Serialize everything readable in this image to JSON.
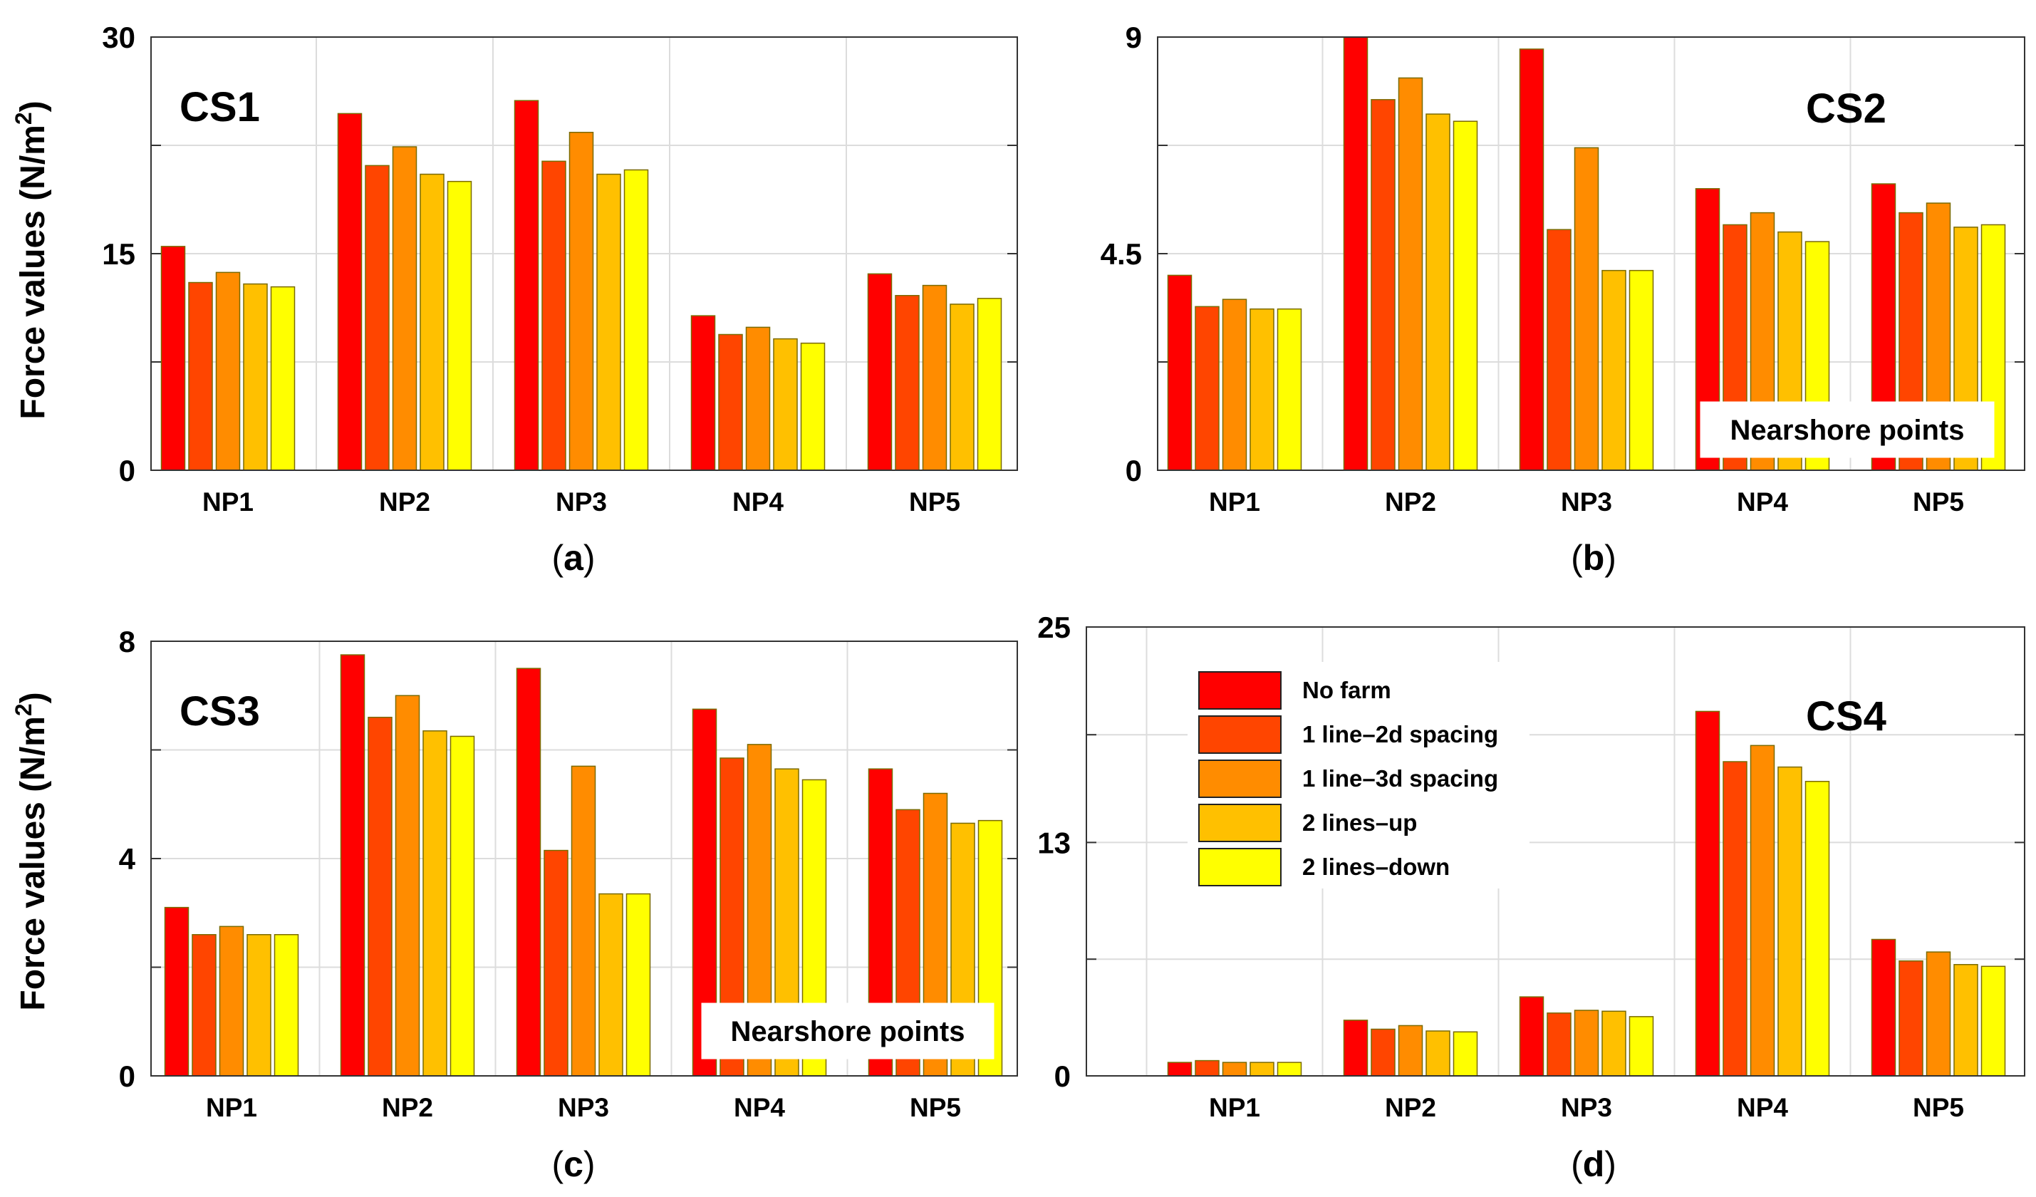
{
  "figure": {
    "ylabel_main": "Force values (N/m",
    "ylabel_sup": "2",
    "ylabel_close": ")",
    "caption_open": "(",
    "caption_close": ")"
  },
  "colors": {
    "series": [
      "#ff0000",
      "#ff4500",
      "#ff8c00",
      "#ffc000",
      "#ffff00"
    ],
    "bar_edge": "#7a6a00",
    "grid": "#dcdcdc",
    "frame": "#333333"
  },
  "legend": {
    "items": [
      "No farm",
      "1 line–2d spacing",
      "1 line–3d spacing",
      "2 lines–up",
      "2 lines–down"
    ]
  },
  "chart_data": [
    {
      "panel": "a",
      "type": "bar",
      "label": "CS1",
      "categories": [
        "NP1",
        "NP2",
        "NP3",
        "NP4",
        "NP5"
      ],
      "yticks": [
        0,
        15,
        30
      ],
      "ytick_labels": [
        "0",
        "15",
        "30"
      ],
      "ylim": [
        0,
        30
      ],
      "grid": true,
      "series": [
        {
          "name": "No farm",
          "values": [
            15.5,
            24.7,
            25.6,
            10.7,
            13.6
          ]
        },
        {
          "name": "1 line–2d spacing",
          "values": [
            13.0,
            21.1,
            21.4,
            9.4,
            12.1
          ]
        },
        {
          "name": "1 line–3d spacing",
          "values": [
            13.7,
            22.4,
            23.4,
            9.9,
            12.8
          ]
        },
        {
          "name": "2 lines–up",
          "values": [
            12.9,
            20.5,
            20.5,
            9.1,
            11.5
          ]
        },
        {
          "name": "2 lines–down",
          "values": [
            12.7,
            20.0,
            20.8,
            8.8,
            11.9
          ]
        }
      ]
    },
    {
      "panel": "b",
      "type": "bar",
      "label": "CS2",
      "annotation": "Nearshore points",
      "categories": [
        "NP1",
        "NP2",
        "NP3",
        "NP4",
        "NP5"
      ],
      "yticks": [
        0,
        4.5,
        9
      ],
      "ytick_labels": [
        "0",
        "4.5",
        "9"
      ],
      "ylim": [
        0,
        9
      ],
      "grid": true,
      "series": [
        {
          "name": "No farm",
          "values": [
            4.05,
            9.0,
            8.75,
            5.85,
            5.95
          ]
        },
        {
          "name": "1 line–2d spacing",
          "values": [
            3.4,
            7.7,
            5.0,
            5.1,
            5.35
          ]
        },
        {
          "name": "1 line–3d spacing",
          "values": [
            3.55,
            8.15,
            6.7,
            5.35,
            5.55
          ]
        },
        {
          "name": "2 lines–up",
          "values": [
            3.35,
            7.4,
            4.15,
            4.95,
            5.05
          ]
        },
        {
          "name": "2 lines–down",
          "values": [
            3.35,
            7.25,
            4.15,
            4.75,
            5.1
          ]
        }
      ]
    },
    {
      "panel": "c",
      "type": "bar",
      "label": "CS3",
      "annotation": "Nearshore points",
      "categories": [
        "NP1",
        "NP2",
        "NP3",
        "NP4",
        "NP5"
      ],
      "yticks": [
        0,
        4,
        8
      ],
      "ytick_labels": [
        "0",
        "4",
        "8"
      ],
      "ylim": [
        0,
        8
      ],
      "grid": true,
      "series": [
        {
          "name": "No farm",
          "values": [
            3.1,
            7.75,
            7.5,
            6.75,
            5.65
          ]
        },
        {
          "name": "1 line–2d spacing",
          "values": [
            2.6,
            6.6,
            4.15,
            5.85,
            4.9
          ]
        },
        {
          "name": "1 line–3d spacing",
          "values": [
            2.75,
            7.0,
            5.7,
            6.1,
            5.2
          ]
        },
        {
          "name": "2 lines–up",
          "values": [
            2.6,
            6.35,
            3.35,
            5.65,
            4.65
          ]
        },
        {
          "name": "2 lines–down",
          "values": [
            2.6,
            6.25,
            3.35,
            5.45,
            4.7
          ]
        }
      ]
    },
    {
      "panel": "d",
      "type": "bar",
      "label": "CS4",
      "categories": [
        "NP1",
        "NP2",
        "NP3",
        "NP4",
        "NP5"
      ],
      "yticks": [
        0,
        13,
        25
      ],
      "ytick_labels": [
        "0",
        "13",
        "25"
      ],
      "ylim": [
        0,
        25
      ],
      "grid": true,
      "legend_position": "top-left",
      "series": [
        {
          "name": "No farm",
          "values": [
            0.75,
            3.1,
            4.4,
            20.3,
            7.6
          ]
        },
        {
          "name": "1 line–2d spacing",
          "values": [
            0.85,
            2.6,
            3.5,
            17.5,
            6.4
          ]
        },
        {
          "name": "1 line–3d spacing",
          "values": [
            0.75,
            2.8,
            3.65,
            18.4,
            6.9
          ]
        },
        {
          "name": "2 lines–up",
          "values": [
            0.75,
            2.5,
            3.6,
            17.2,
            6.2
          ]
        },
        {
          "name": "2 lines–down",
          "values": [
            0.75,
            2.45,
            3.3,
            16.4,
            6.1
          ]
        }
      ]
    }
  ]
}
